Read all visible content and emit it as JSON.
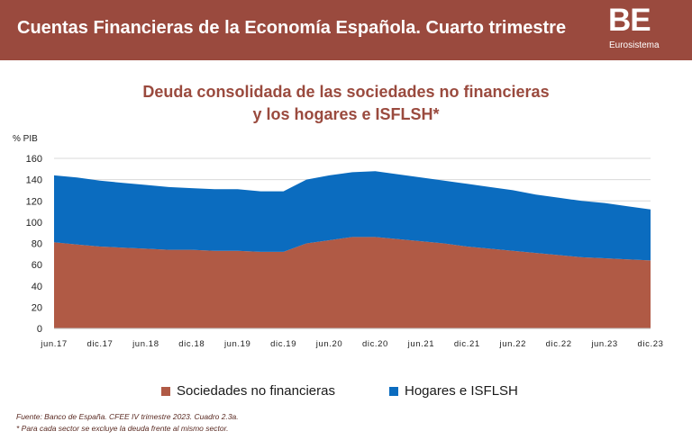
{
  "header": {
    "title": "Cuentas Financieras de la Economía Española. Cuarto trimestre",
    "logo_mark": "BE",
    "logo_sub": "Eurosistema",
    "background": "#9a4a3e"
  },
  "chart_title": {
    "line1": "Deuda consolidada de las sociedades no financieras",
    "line2": "y los hogares e ISFLSH*"
  },
  "chart_data": {
    "type": "area",
    "stacked": true,
    "ylabel": "% PIB",
    "ylim": [
      0,
      160
    ],
    "yticks": [
      0,
      20,
      40,
      60,
      80,
      100,
      120,
      140,
      160
    ],
    "grid": true,
    "x": [
      "2017Q2",
      "2017Q3",
      "2017Q4",
      "2018Q1",
      "2018Q2",
      "2018Q3",
      "2018Q4",
      "2019Q1",
      "2019Q2",
      "2019Q3",
      "2019Q4",
      "2020Q1",
      "2020Q2",
      "2020Q3",
      "2020Q4",
      "2021Q1",
      "2021Q2",
      "2021Q3",
      "2021Q4",
      "2022Q1",
      "2022Q2",
      "2022Q3",
      "2022Q4",
      "2023Q1",
      "2023Q2",
      "2023Q3",
      "2023Q4"
    ],
    "x_tick_labels": [
      "jun.17",
      "dic.17",
      "jun.18",
      "dic.18",
      "jun.19",
      "dic.19",
      "jun.20",
      "dic.20",
      "jun.21",
      "dic.21",
      "jun.22",
      "dic.22",
      "jun.23",
      "dic.23"
    ],
    "x_tick_index": [
      0,
      2,
      4,
      6,
      8,
      10,
      12,
      14,
      16,
      18,
      20,
      22,
      24,
      26
    ],
    "series": [
      {
        "name": "Sociedades no financieras",
        "color": "#b05a45",
        "values": [
          81,
          79,
          77,
          76,
          75,
          74,
          74,
          73,
          73,
          72,
          72,
          80,
          83,
          86,
          86,
          84,
          82,
          80,
          77,
          75,
          73,
          71,
          69,
          67,
          66,
          65,
          64
        ]
      },
      {
        "name": "Hogares e ISFLSH",
        "color": "#0b6cbf",
        "values": [
          63,
          63,
          62,
          61,
          60,
          59,
          58,
          58,
          58,
          57,
          57,
          60,
          61,
          61,
          62,
          61,
          60,
          59,
          59,
          58,
          57,
          55,
          54,
          53,
          52,
          50,
          48
        ]
      }
    ],
    "legend_position": "bottom"
  },
  "footnotes": {
    "source": "Fuente: Banco de España. CFEE IV trimestre 2023. Cuadro 2.3a.",
    "note": "* Para cada sector se excluye la deuda frente al mismo sector."
  }
}
